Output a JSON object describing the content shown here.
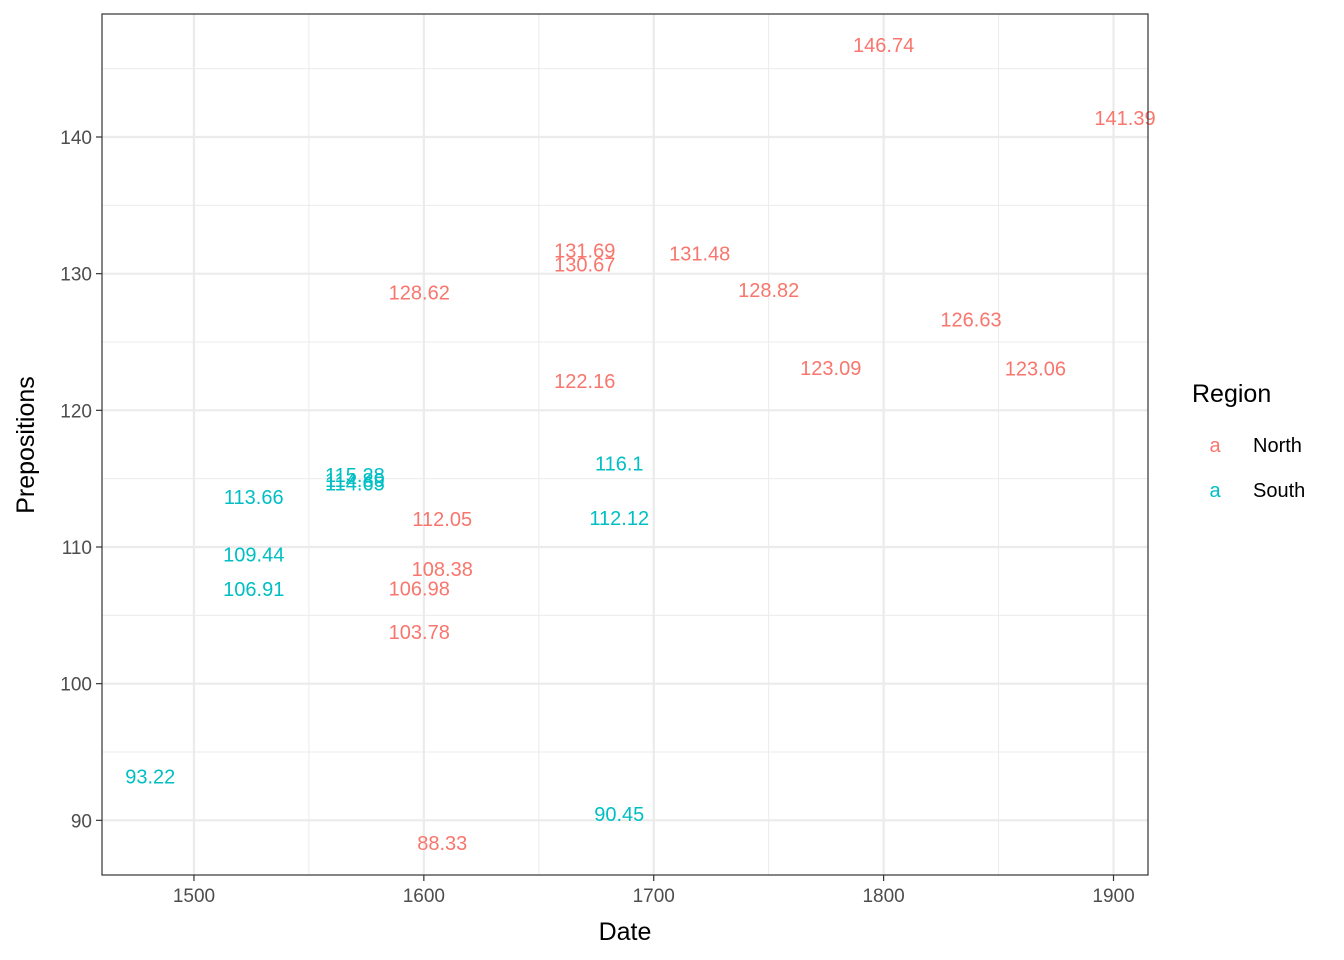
{
  "chart_data": {
    "type": "scatter",
    "xlabel": "Date",
    "ylabel": "Prepositions",
    "xlim": [
      1460,
      1915
    ],
    "ylim": [
      86,
      149
    ],
    "x_ticks": [
      "1500",
      "1600",
      "1700",
      "1800",
      "1900"
    ],
    "y_ticks": [
      "90",
      "100",
      "110",
      "120",
      "130",
      "140"
    ],
    "grid": true,
    "legend": {
      "title": "Region",
      "placement": "right",
      "entries": [
        {
          "key": "a",
          "label": "North",
          "color": "#F8766D"
        },
        {
          "key": "a",
          "label": "South",
          "color": "#00BFC4"
        }
      ]
    },
    "series": [
      {
        "name": "North",
        "color": "#F8766D",
        "points": [
          {
            "x": 1800,
            "y": 146.74,
            "label": "146.74"
          },
          {
            "x": 1905,
            "y": 141.39,
            "label": "141.39"
          },
          {
            "x": 1670,
            "y": 131.69,
            "label": "131.69"
          },
          {
            "x": 1670,
            "y": 130.67,
            "label": "130.67"
          },
          {
            "x": 1720,
            "y": 131.48,
            "label": "131.48"
          },
          {
            "x": 1598,
            "y": 128.62,
            "label": "128.62"
          },
          {
            "x": 1750,
            "y": 128.82,
            "label": "128.82"
          },
          {
            "x": 1838,
            "y": 126.63,
            "label": "126.63"
          },
          {
            "x": 1670,
            "y": 122.16,
            "label": "122.16"
          },
          {
            "x": 1777,
            "y": 123.09,
            "label": "123.09"
          },
          {
            "x": 1866,
            "y": 123.06,
            "label": "123.06"
          },
          {
            "x": 1608,
            "y": 112.05,
            "label": "112.05"
          },
          {
            "x": 1608,
            "y": 108.38,
            "label": "108.38"
          },
          {
            "x": 1598,
            "y": 106.98,
            "label": "106.98"
          },
          {
            "x": 1598,
            "y": 103.78,
            "label": "103.78"
          },
          {
            "x": 1608,
            "y": 88.33,
            "label": "88.33"
          }
        ]
      },
      {
        "name": "South",
        "color": "#00BFC4",
        "points": [
          {
            "x": 1526,
            "y": 113.66,
            "label": "113.66"
          },
          {
            "x": 1570,
            "y": 115.28,
            "label": "115.28"
          },
          {
            "x": 1570,
            "y": 114.89,
            "label": "114.89"
          },
          {
            "x": 1570,
            "y": 114.65,
            "label": "114.65"
          },
          {
            "x": 1526,
            "y": 109.44,
            "label": "109.44"
          },
          {
            "x": 1526,
            "y": 106.91,
            "label": "106.91"
          },
          {
            "x": 1685,
            "y": 116.1,
            "label": "116.1"
          },
          {
            "x": 1685,
            "y": 112.12,
            "label": "112.12"
          },
          {
            "x": 1481,
            "y": 93.22,
            "label": "93.22"
          },
          {
            "x": 1685,
            "y": 90.45,
            "label": "90.45"
          }
        ]
      }
    ]
  }
}
